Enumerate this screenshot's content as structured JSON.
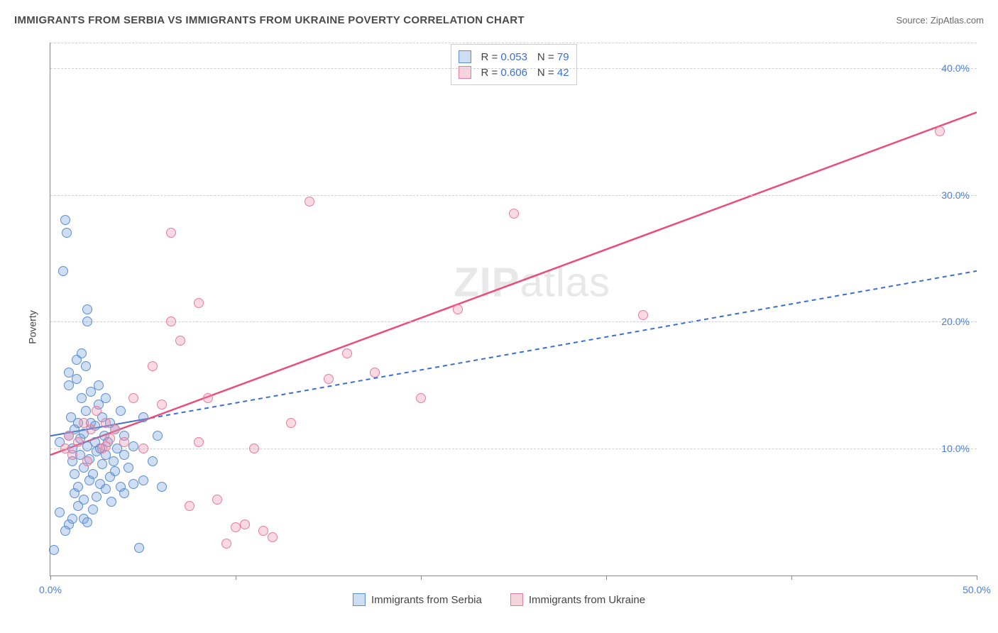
{
  "title": "IMMIGRANTS FROM SERBIA VS IMMIGRANTS FROM UKRAINE POVERTY CORRELATION CHART",
  "source_label": "Source: ",
  "source_value": "ZipAtlas.com",
  "ylabel": "Poverty",
  "watermark_zip": "ZIP",
  "watermark_atlas": "atlas",
  "chart": {
    "type": "scatter",
    "background_color": "#ffffff",
    "grid_color": "#d0d0d0",
    "axis_color": "#888888",
    "tick_label_color": "#4a7fd8",
    "xlim": [
      0,
      50
    ],
    "ylim": [
      0,
      42
    ],
    "yticks": [
      10,
      20,
      30,
      40
    ],
    "ytick_labels": [
      "10.0%",
      "20.0%",
      "30.0%",
      "40.0%"
    ],
    "xticks": [
      0,
      10,
      20,
      30,
      40,
      50
    ],
    "xtick_labels_shown": {
      "0": "0.0%",
      "50": "50.0%"
    },
    "marker_radius": 7,
    "marker_stroke_width": 1.2,
    "series": [
      {
        "name": "Immigrants from Serbia",
        "fill": "rgba(120,160,220,0.35)",
        "stroke": "#5a8ecf",
        "swatch_fill": "#cdddf2",
        "swatch_stroke": "#5a8ecf",
        "r_value": "0.053",
        "n_value": "79",
        "trend": {
          "x1": 0,
          "y1": 11.0,
          "x2": 50,
          "y2": 24.0,
          "solid_until_x": 5,
          "color": "#3a6fd0",
          "width": 2,
          "dash": "6,5"
        },
        "points": [
          [
            0.2,
            2.0
          ],
          [
            0.5,
            10.5
          ],
          [
            0.5,
            5.0
          ],
          [
            0.7,
            24.0
          ],
          [
            0.8,
            28.0
          ],
          [
            0.9,
            27.0
          ],
          [
            1.0,
            11.0
          ],
          [
            1.0,
            15.0
          ],
          [
            1.0,
            16.0
          ],
          [
            1.1,
            12.5
          ],
          [
            1.2,
            9.0
          ],
          [
            1.2,
            10.0
          ],
          [
            1.3,
            6.5
          ],
          [
            1.3,
            8.0
          ],
          [
            1.3,
            11.5
          ],
          [
            1.4,
            15.5
          ],
          [
            1.4,
            17.0
          ],
          [
            1.5,
            5.5
          ],
          [
            1.5,
            7.0
          ],
          [
            1.5,
            12.0
          ],
          [
            1.6,
            9.5
          ],
          [
            1.6,
            10.8
          ],
          [
            1.7,
            14.0
          ],
          [
            1.7,
            17.5
          ],
          [
            1.8,
            4.5
          ],
          [
            1.8,
            6.0
          ],
          [
            1.8,
            8.5
          ],
          [
            1.8,
            11.2
          ],
          [
            1.9,
            13.0
          ],
          [
            1.9,
            16.5
          ],
          [
            2.0,
            20.0
          ],
          [
            2.0,
            21.0
          ],
          [
            2.0,
            10.2
          ],
          [
            2.1,
            7.5
          ],
          [
            2.1,
            9.2
          ],
          [
            2.2,
            12.0
          ],
          [
            2.2,
            14.5
          ],
          [
            2.3,
            5.2
          ],
          [
            2.3,
            8.0
          ],
          [
            2.4,
            10.5
          ],
          [
            2.4,
            11.8
          ],
          [
            2.5,
            6.2
          ],
          [
            2.5,
            9.8
          ],
          [
            2.6,
            13.5
          ],
          [
            2.6,
            15.0
          ],
          [
            2.7,
            7.2
          ],
          [
            2.7,
            10.0
          ],
          [
            2.8,
            8.8
          ],
          [
            2.8,
            12.5
          ],
          [
            2.9,
            11.0
          ],
          [
            3.0,
            6.8
          ],
          [
            3.0,
            9.5
          ],
          [
            3.0,
            14.0
          ],
          [
            3.1,
            10.5
          ],
          [
            3.2,
            7.8
          ],
          [
            3.2,
            12.0
          ],
          [
            3.3,
            5.8
          ],
          [
            3.4,
            9.0
          ],
          [
            3.5,
            11.5
          ],
          [
            3.5,
            8.2
          ],
          [
            3.6,
            10.0
          ],
          [
            3.8,
            13.0
          ],
          [
            3.8,
            7.0
          ],
          [
            4.0,
            6.5
          ],
          [
            4.0,
            9.5
          ],
          [
            4.0,
            11.0
          ],
          [
            4.2,
            8.5
          ],
          [
            4.5,
            10.2
          ],
          [
            4.5,
            7.2
          ],
          [
            4.8,
            2.2
          ],
          [
            5.0,
            12.5
          ],
          [
            5.0,
            7.5
          ],
          [
            5.5,
            9.0
          ],
          [
            5.8,
            11.0
          ],
          [
            6.0,
            7.0
          ],
          [
            1.0,
            4.0
          ],
          [
            1.2,
            4.5
          ],
          [
            0.8,
            3.5
          ],
          [
            2.0,
            4.2
          ]
        ]
      },
      {
        "name": "Immigrants from Ukraine",
        "fill": "rgba(235,140,165,0.32)",
        "stroke": "#e57ba0",
        "swatch_fill": "#f6d4de",
        "swatch_stroke": "#e57ba0",
        "r_value": "0.606",
        "n_value": "42",
        "trend": {
          "x1": 0,
          "y1": 9.5,
          "x2": 50,
          "y2": 36.5,
          "solid_until_x": 50,
          "color": "#ea4d7a",
          "width": 2.5,
          "dash": null
        },
        "points": [
          [
            0.8,
            10.0
          ],
          [
            1.0,
            11.0
          ],
          [
            1.2,
            9.5
          ],
          [
            1.5,
            10.5
          ],
          [
            1.8,
            12.0
          ],
          [
            2.0,
            9.0
          ],
          [
            2.2,
            11.5
          ],
          [
            2.5,
            13.0
          ],
          [
            2.8,
            10.0
          ],
          [
            3.0,
            12.0
          ],
          [
            3.0,
            10.2
          ],
          [
            3.2,
            10.8
          ],
          [
            3.5,
            11.5
          ],
          [
            4.0,
            10.5
          ],
          [
            4.5,
            14.0
          ],
          [
            5.0,
            10.0
          ],
          [
            5.5,
            16.5
          ],
          [
            6.0,
            13.5
          ],
          [
            6.5,
            20.0
          ],
          [
            6.5,
            27.0
          ],
          [
            7.0,
            18.5
          ],
          [
            7.5,
            5.5
          ],
          [
            8.0,
            21.5
          ],
          [
            8.0,
            10.5
          ],
          [
            8.5,
            14.0
          ],
          [
            9.0,
            6.0
          ],
          [
            9.5,
            2.5
          ],
          [
            10.0,
            3.8
          ],
          [
            10.5,
            4.0
          ],
          [
            11.0,
            10.0
          ],
          [
            12.0,
            3.0
          ],
          [
            13.0,
            12.0
          ],
          [
            14.0,
            29.5
          ],
          [
            15.0,
            15.5
          ],
          [
            16.0,
            17.5
          ],
          [
            17.5,
            16.0
          ],
          [
            20.0,
            14.0
          ],
          [
            22.0,
            21.0
          ],
          [
            25.0,
            28.5
          ],
          [
            32.0,
            20.5
          ],
          [
            48.0,
            35.0
          ],
          [
            11.5,
            3.5
          ]
        ]
      }
    ]
  },
  "legend": {
    "series1_label": "Immigrants from Serbia",
    "series2_label": "Immigrants from Ukraine"
  }
}
